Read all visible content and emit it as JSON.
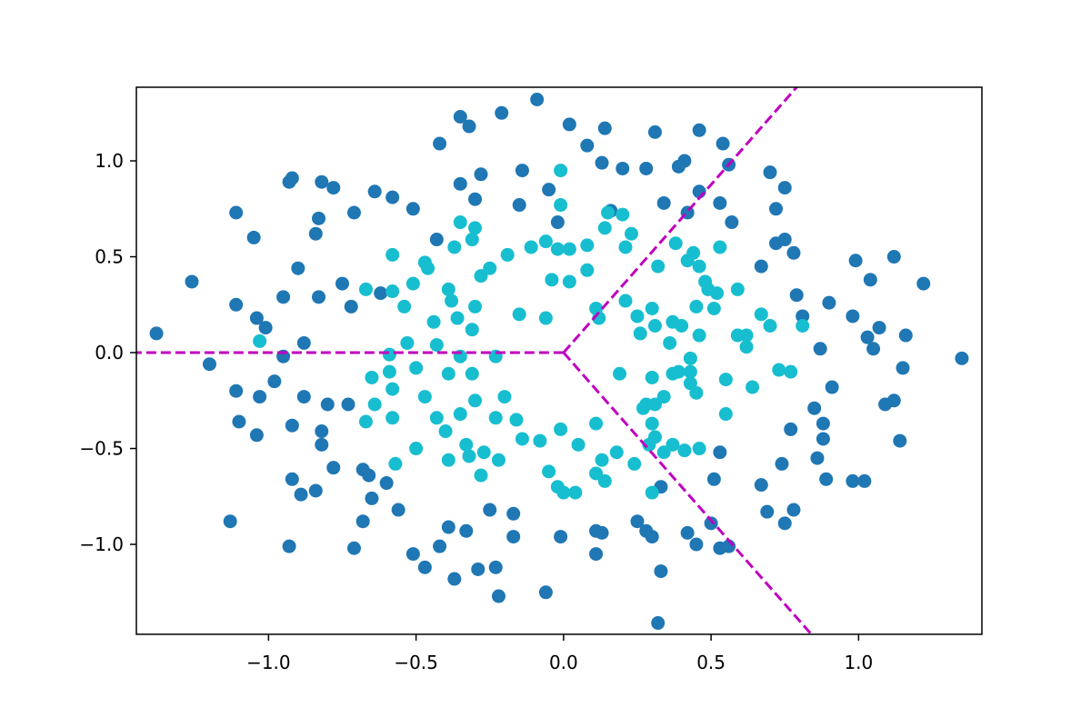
{
  "chart_data": {
    "type": "scatter",
    "xlim": [
      -1.448,
      1.418
    ],
    "ylim": [
      -1.469,
      1.384
    ],
    "xticks": [
      {
        "value": -1,
        "label": "−1.0"
      },
      {
        "value": -0.5,
        "label": "−0.5"
      },
      {
        "value": 0,
        "label": "0.0"
      },
      {
        "value": 0.5,
        "label": "0.5"
      },
      {
        "value": 1,
        "label": "1.0"
      }
    ],
    "yticks": [
      {
        "value": -1,
        "label": "−1.0"
      },
      {
        "value": -0.5,
        "label": "−0.5"
      },
      {
        "value": 0,
        "label": "0.0"
      },
      {
        "value": 0.5,
        "label": "0.5"
      },
      {
        "value": 1,
        "label": "1.0"
      }
    ],
    "grid": false,
    "series": [
      {
        "color": "#1f77b4",
        "x": [
          -1.38,
          -1.26,
          -1.2,
          -1.11,
          -1.11,
          -1.11,
          -1.1,
          -1.13,
          -1.05,
          -1.04,
          -1.04,
          -1.03,
          -1.01,
          -0.98,
          -0.95,
          -0.95,
          -0.93,
          -0.92,
          -0.92,
          -0.92,
          -0.93,
          -0.9,
          -0.89,
          -0.88,
          -0.88,
          -0.84,
          -0.84,
          -0.83,
          -0.83,
          -0.82,
          -0.82,
          -0.82,
          -0.8,
          -0.78,
          -0.78,
          -0.75,
          -0.73,
          -0.72,
          -0.71,
          -0.71,
          -0.68,
          -0.68,
          -0.66,
          -0.65,
          -0.64,
          -0.62,
          -0.6,
          -0.58,
          -0.56,
          -0.51,
          -0.51,
          -0.47,
          -0.43,
          -0.42,
          -0.42,
          -0.39,
          -0.37,
          -0.35,
          -0.35,
          -0.33,
          -0.32,
          -0.3,
          -0.28,
          -0.29,
          -0.25,
          -0.23,
          -0.22,
          -0.21,
          -0.17,
          -0.17,
          -0.15,
          -0.14,
          -0.09,
          -0.06,
          -0.05,
          -0.02,
          -0.01,
          0.02,
          0.08,
          0.11,
          0.11,
          0.13,
          0.14,
          0.13,
          0.16,
          0.2,
          0.25,
          0.28,
          0.28,
          0.3,
          0.31,
          0.33,
          0.34,
          0.33,
          0.32,
          0.39,
          0.41,
          0.42,
          0.42,
          0.45,
          0.46,
          0.46,
          0.5,
          0.53,
          0.53,
          0.54,
          0.56,
          0.53,
          0.57,
          0.51,
          0.56,
          0.67,
          0.67,
          0.69,
          0.7,
          0.72,
          0.72,
          0.74,
          0.75,
          0.75,
          0.75,
          0.77,
          0.78,
          0.78,
          0.79,
          0.81,
          0.85,
          0.86,
          0.87,
          0.88,
          0.88,
          0.9,
          0.91,
          0.89,
          0.98,
          0.98,
          0.99,
          1.02,
          1.03,
          1.04,
          1.05,
          1.07,
          1.09,
          1.12,
          1.12,
          1.14,
          1.15,
          1.16,
          1.22,
          1.35
        ],
        "values": [
          0.1,
          0.37,
          -0.06,
          0.73,
          0.25,
          -0.2,
          -0.36,
          -0.88,
          0.6,
          0.18,
          -0.43,
          -0.23,
          0.13,
          -0.15,
          -0.02,
          0.29,
          0.89,
          0.91,
          -0.38,
          -0.66,
          -1.01,
          0.44,
          -0.74,
          0.05,
          -0.23,
          -0.72,
          0.62,
          0.29,
          0.7,
          -0.48,
          -0.41,
          0.89,
          -0.27,
          -0.6,
          0.86,
          0.36,
          -0.27,
          0.24,
          0.73,
          -1.02,
          -0.61,
          -0.88,
          -0.64,
          -0.76,
          0.84,
          0.31,
          -0.68,
          0.81,
          -0.82,
          0.75,
          -1.05,
          -1.12,
          0.59,
          1.09,
          -1.01,
          -0.91,
          -1.18,
          1.23,
          0.88,
          -0.93,
          1.18,
          0.8,
          0.93,
          -1.13,
          -0.82,
          -1.12,
          -1.27,
          1.25,
          -0.96,
          -0.84,
          0.77,
          0.95,
          1.32,
          -1.25,
          0.85,
          0.68,
          -0.96,
          1.19,
          1.08,
          -1.05,
          -0.93,
          -0.94,
          1.17,
          0.99,
          0.74,
          0.96,
          -0.88,
          0.96,
          -0.93,
          -0.96,
          1.15,
          -0.7,
          0.78,
          -1.14,
          -1.41,
          0.97,
          1.0,
          -0.94,
          0.73,
          -1.0,
          1.16,
          0.84,
          -0.89,
          0.78,
          -1.02,
          1.09,
          0.98,
          -0.52,
          0.68,
          -0.66,
          -1.01,
          -0.69,
          0.45,
          -0.83,
          0.94,
          0.75,
          0.57,
          -0.58,
          0.86,
          -0.89,
          0.59,
          -0.4,
          0.52,
          -0.82,
          0.3,
          0.19,
          -0.29,
          -0.55,
          0.02,
          -0.37,
          -0.45,
          0.26,
          -0.18,
          -0.66,
          0.19,
          -0.67,
          0.48,
          -0.67,
          0.08,
          0.38,
          0.02,
          0.13,
          -0.27,
          -0.25,
          0.5,
          -0.46,
          -0.08,
          0.09,
          0.36,
          -0.03
        ]
      },
      {
        "color": "#17becf",
        "x": [
          -1.03,
          -0.67,
          -0.67,
          -0.65,
          -0.64,
          -0.59,
          -0.59,
          -0.58,
          -0.58,
          -0.58,
          -0.58,
          -0.57,
          -0.53,
          -0.54,
          -0.51,
          -0.5,
          -0.5,
          -0.47,
          -0.47,
          -0.46,
          -0.44,
          -0.43,
          -0.43,
          -0.4,
          -0.39,
          -0.39,
          -0.39,
          -0.38,
          -0.37,
          -0.36,
          -0.35,
          -0.35,
          -0.35,
          -0.33,
          -0.32,
          -0.31,
          -0.31,
          -0.3,
          -0.31,
          -0.3,
          -0.3,
          -0.28,
          -0.28,
          -0.27,
          -0.25,
          -0.23,
          -0.23,
          -0.22,
          -0.2,
          -0.19,
          -0.16,
          -0.15,
          -0.14,
          -0.11,
          -0.08,
          -0.06,
          -0.06,
          -0.05,
          -0.04,
          -0.02,
          -0.02,
          -0.01,
          -0.01,
          -0.01,
          0.0,
          0.02,
          0.02,
          0.04,
          0.05,
          0.08,
          0.08,
          0.11,
          0.11,
          0.11,
          0.12,
          0.13,
          0.14,
          0.14,
          0.15,
          0.18,
          0.19,
          0.2,
          0.21,
          0.21,
          0.23,
          0.24,
          0.25,
          0.26,
          0.27,
          0.28,
          0.29,
          0.3,
          0.3,
          0.3,
          0.31,
          0.3,
          0.31,
          0.31,
          0.32,
          0.34,
          0.34,
          0.36,
          0.37,
          0.37,
          0.37,
          0.38,
          0.39,
          0.4,
          0.41,
          0.42,
          0.43,
          0.43,
          0.43,
          0.45,
          0.44,
          0.46,
          0.46,
          0.45,
          0.46,
          0.48,
          0.49,
          0.51,
          0.52,
          0.53,
          0.55,
          0.55,
          0.59,
          0.59,
          0.62,
          0.62,
          0.64,
          0.67,
          0.7,
          0.73,
          0.77,
          0.81
        ],
        "values": [
          0.06,
          -0.36,
          0.33,
          -0.13,
          -0.27,
          -0.01,
          -0.1,
          -0.19,
          -0.34,
          0.32,
          0.51,
          -0.58,
          0.05,
          0.24,
          0.36,
          -0.08,
          -0.5,
          -0.23,
          0.47,
          0.44,
          0.16,
          0.04,
          -0.34,
          -0.41,
          -0.11,
          0.33,
          -0.56,
          0.27,
          0.55,
          0.18,
          -0.02,
          -0.32,
          0.68,
          -0.48,
          -0.54,
          0.59,
          0.12,
          0.24,
          -0.11,
          0.65,
          -0.25,
          -0.64,
          0.4,
          -0.52,
          0.44,
          -0.02,
          -0.34,
          -0.56,
          -0.23,
          0.51,
          -0.35,
          0.2,
          -0.45,
          0.55,
          -0.46,
          0.58,
          0.18,
          -0.62,
          0.38,
          0.54,
          -0.7,
          -0.4,
          0.95,
          0.77,
          -0.73,
          0.37,
          0.54,
          -0.73,
          -0.48,
          0.43,
          0.56,
          0.23,
          -0.63,
          -0.37,
          0.18,
          -0.56,
          0.65,
          -0.67,
          0.73,
          -0.52,
          -0.11,
          0.72,
          0.55,
          0.27,
          0.62,
          -0.58,
          0.19,
          0.1,
          -0.29,
          -0.27,
          -0.48,
          -0.37,
          0.23,
          -0.13,
          -0.44,
          -0.73,
          0.14,
          -0.27,
          0.45,
          -0.52,
          -0.23,
          0.05,
          0.16,
          -0.11,
          -0.48,
          0.57,
          -0.1,
          0.14,
          -0.51,
          0.48,
          -0.03,
          -0.1,
          -0.16,
          -0.21,
          0.52,
          0.09,
          0.45,
          0.24,
          -0.5,
          0.37,
          0.33,
          0.23,
          0.31,
          0.55,
          -0.14,
          -0.32,
          0.33,
          0.09,
          0.09,
          0.03,
          -0.18,
          0.2,
          0.14,
          -0.09,
          -0.1,
          0.14
        ]
      }
    ],
    "lines": [
      {
        "color": "#bf00bf",
        "x": [
          0,
          -1.448
        ],
        "values": [
          0,
          0
        ]
      },
      {
        "color": "#bf00bf",
        "x": [
          0,
          0.79
        ],
        "values": [
          0,
          1.384
        ]
      },
      {
        "color": "#bf00bf",
        "x": [
          0,
          0.84
        ],
        "values": [
          0,
          -1.469
        ]
      }
    ]
  }
}
